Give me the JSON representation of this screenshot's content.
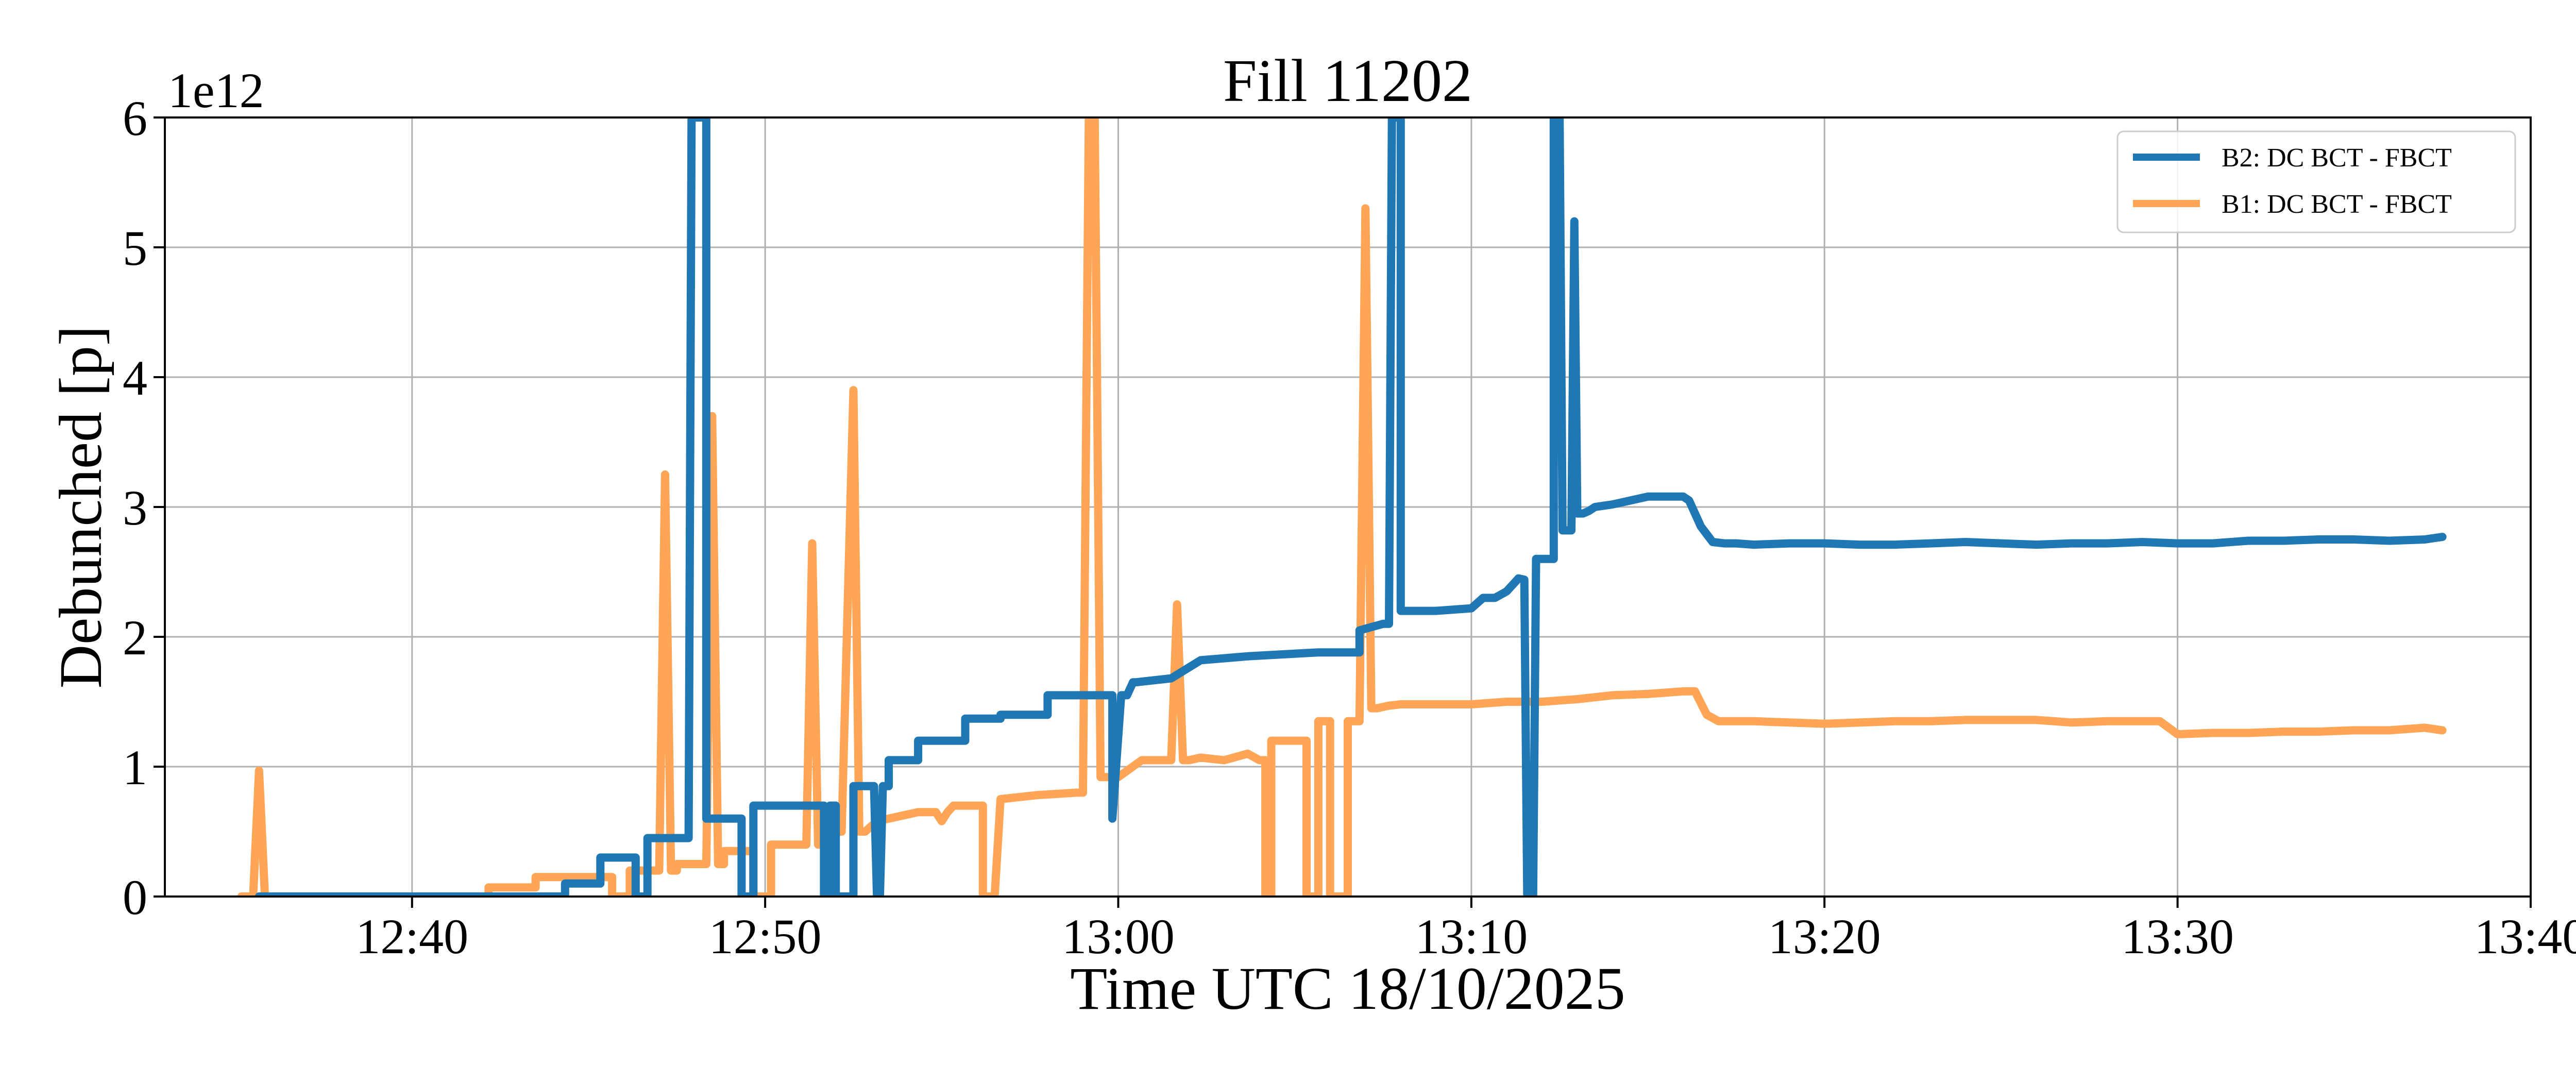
{
  "chart_data": {
    "type": "line",
    "title": "Fill 11202",
    "xlabel": "Time UTC 18/10/2025",
    "ylabel": "Debunched [p]",
    "y_multiplier": "1e12",
    "xlim": [
      "12:33",
      "13:40"
    ],
    "ylim": [
      0,
      6
    ],
    "x_ticks": [
      "12:40",
      "12:50",
      "13:00",
      "13:10",
      "13:20",
      "13:30",
      "13:40"
    ],
    "y_ticks": [
      "0",
      "1",
      "2",
      "3",
      "4",
      "5",
      "6"
    ],
    "grid": true,
    "legend_location": "top-right",
    "series": [
      {
        "name": "B2: DC BCT - FBCT",
        "color": "#1f77b4",
        "x": [
          "12:35:40",
          "12:37:00",
          "12:40:00",
          "12:43:00",
          "12:43:40",
          "12:44:20",
          "12:44:20",
          "12:45:00",
          "12:45:20",
          "12:45:20",
          "12:46:20",
          "12:46:20",
          "12:46:40",
          "12:46:40",
          "12:47:10",
          "12:47:10",
          "12:47:50",
          "12:47:55",
          "12:48:00",
          "12:48:05",
          "12:48:15",
          "12:48:20",
          "12:48:20",
          "12:49:20",
          "12:49:20",
          "12:49:40",
          "12:49:40",
          "12:51:40",
          "12:51:40",
          "12:51:50",
          "12:51:50",
          "12:52:00",
          "12:52:00",
          "12:52:30",
          "12:52:30",
          "12:53:05",
          "12:53:10",
          "12:53:15",
          "12:53:20",
          "12:53:30",
          "12:53:30",
          "12:54:20",
          "12:54:20",
          "12:55:40",
          "12:55:40",
          "12:56:40",
          "12:56:40",
          "12:58:00",
          "12:58:00",
          "12:58:45",
          "12:58:45",
          "12:59:50",
          "12:59:50",
          "13:00:05",
          "13:00:15",
          "13:00:25",
          "13:00:30",
          "13:00:30",
          "13:01:30",
          "13:01:30",
          "13:02:20",
          "13:02:20",
          "13:03:40",
          "13:03:40",
          "13:05:40",
          "13:05:40",
          "13:06:20",
          "13:06:30",
          "13:06:40",
          "13:06:50",
          "13:06:50",
          "13:07:30",
          "13:07:40",
          "13:07:45",
          "13:07:50",
          "13:07:55",
          "13:08:00",
          "13:08:00",
          "13:09:00",
          "13:09:00",
          "13:10:00",
          "13:10:20",
          "13:10:40",
          "13:10:40",
          "13:11:00",
          "13:11:10",
          "13:11:20",
          "13:11:30",
          "13:11:35",
          "13:11:40",
          "13:11:45",
          "13:11:50",
          "13:11:50",
          "13:12:20",
          "13:12:20",
          "13:12:25",
          "13:12:30",
          "13:12:35",
          "13:12:40",
          "13:12:45",
          "13:12:50",
          "13:12:55",
          "13:13:00",
          "13:13:05",
          "13:13:10",
          "13:13:20",
          "13:13:30",
          "13:14:00",
          "13:14:30",
          "13:15:00",
          "13:15:30",
          "13:16:00",
          "13:16:10",
          "13:16:30",
          "13:16:50",
          "13:17:10",
          "13:17:30",
          "13:18:00",
          "13:19:00",
          "13:20:00",
          "13:21:00",
          "13:22:00",
          "13:23:00",
          "13:24:00",
          "13:25:00",
          "13:26:00",
          "13:27:00",
          "13:28:00",
          "13:29:00",
          "13:30:00",
          "13:31:00",
          "13:32:00",
          "13:33:00",
          "13:34:00",
          "13:35:00",
          "13:36:00",
          "13:37:00",
          "13:37:30"
        ],
        "y": [
          0.0,
          0.0,
          0.0,
          0.0,
          0.0,
          0.0,
          0.1,
          0.1,
          0.1,
          0.3,
          0.3,
          0.0,
          0.0,
          0.45,
          0.45,
          0.45,
          0.45,
          6.0,
          6.0,
          6.0,
          6.0,
          6.0,
          0.6,
          0.6,
          0.0,
          0.0,
          0.7,
          0.7,
          0.0,
          0.0,
          0.7,
          0.7,
          0.0,
          0.0,
          0.85,
          0.85,
          0.0,
          0.0,
          0.85,
          0.85,
          1.05,
          1.05,
          1.2,
          1.2,
          1.37,
          1.37,
          1.4,
          1.4,
          1.55,
          1.55,
          1.55,
          1.55,
          0.6,
          1.55,
          1.55,
          1.65,
          1.65,
          1.65,
          1.68,
          1.68,
          1.82,
          1.82,
          1.85,
          1.85,
          1.88,
          1.88,
          1.88,
          1.88,
          1.88,
          1.88,
          2.05,
          2.1,
          2.1,
          6.0,
          6.0,
          6.0,
          6.0,
          2.2,
          2.2,
          2.2,
          2.22,
          2.3,
          2.3,
          2.3,
          2.35,
          2.4,
          2.45,
          2.44,
          0.0,
          0.0,
          0.0,
          2.6,
          2.6,
          2.6,
          6.0,
          6.0,
          6.0,
          2.82,
          2.82,
          2.82,
          2.82,
          5.2,
          2.95,
          2.95,
          2.95,
          2.97,
          3.0,
          3.02,
          3.05,
          3.08,
          3.08,
          3.08,
          3.05,
          2.85,
          2.73,
          2.72,
          2.72,
          2.71,
          2.72,
          2.72,
          2.71,
          2.71,
          2.72,
          2.73,
          2.72,
          2.71,
          2.72,
          2.72,
          2.73,
          2.72,
          2.72,
          2.74,
          2.74,
          2.75,
          2.75,
          2.74,
          2.75,
          2.77
        ]
      },
      {
        "name": "B1: DC BCT - FBCT",
        "color": "#ffa556",
        "x": [
          "12:35:10",
          "12:35:30",
          "12:35:40",
          "12:35:50",
          "12:36:00",
          "12:37:00",
          "12:40:00",
          "12:42:10",
          "12:42:10",
          "12:43:30",
          "12:43:30",
          "12:45:00",
          "12:45:40",
          "12:45:40",
          "12:46:10",
          "12:46:10",
          "12:47:00",
          "12:47:10",
          "12:47:20",
          "12:47:30",
          "12:47:30",
          "12:48:20",
          "12:48:30",
          "12:48:40",
          "12:48:50",
          "12:48:50",
          "12:49:40",
          "12:49:40",
          "12:50:10",
          "12:50:10",
          "12:51:10",
          "12:51:20",
          "12:51:30",
          "12:51:40",
          "12:51:40",
          "12:52:10",
          "12:52:30",
          "12:52:40",
          "12:52:50",
          "12:53:10",
          "12:53:10",
          "12:54:20",
          "12:54:50",
          "12:55:00",
          "12:55:10",
          "12:55:20",
          "12:55:40",
          "12:56:10",
          "12:56:10",
          "12:56:30",
          "12:56:40",
          "12:56:40",
          "12:57:40",
          "12:57:40",
          "12:58:50",
          "12:59:00",
          "12:59:10",
          "12:59:20",
          "12:59:30",
          "12:59:40",
          "13:00:00",
          "13:00:40",
          "13:00:40",
          "13:01:30",
          "13:01:40",
          "13:01:50",
          "13:02:00",
          "13:02:20",
          "13:03:00",
          "13:03:40",
          "13:04:00",
          "13:04:10",
          "13:04:10",
          "13:04:20",
          "13:04:20",
          "13:05:20",
          "13:05:20",
          "13:05:40",
          "13:05:40",
          "13:06:00",
          "13:06:00",
          "13:06:30",
          "13:06:30",
          "13:06:50",
          "13:07:00",
          "13:07:10",
          "13:07:20",
          "13:07:40",
          "13:08:00",
          "13:09:00",
          "13:10:00",
          "13:11:00",
          "13:12:00",
          "13:13:00",
          "13:14:00",
          "13:15:00",
          "13:16:00",
          "13:16:20",
          "13:16:40",
          "13:17:00",
          "13:17:30",
          "13:18:00",
          "13:19:00",
          "13:20:00",
          "13:21:00",
          "13:22:00",
          "13:23:00",
          "13:24:00",
          "13:25:00",
          "13:26:00",
          "13:27:00",
          "13:28:00",
          "13:29:00",
          "13:29:30",
          "13:30:00",
          "13:31:00",
          "13:32:00",
          "13:33:00",
          "13:34:00",
          "13:35:00",
          "13:36:00",
          "13:37:00",
          "13:37:30"
        ],
        "y": [
          0.0,
          0.0,
          0.97,
          0.0,
          0.0,
          0.0,
          0.0,
          0.0,
          0.07,
          0.07,
          0.15,
          0.15,
          0.15,
          0.0,
          0.0,
          0.2,
          0.2,
          3.25,
          0.2,
          0.2,
          0.25,
          0.25,
          3.7,
          0.25,
          0.25,
          0.35,
          0.35,
          0.0,
          0.0,
          0.4,
          0.4,
          2.72,
          0.4,
          0.4,
          0.5,
          0.5,
          3.9,
          0.5,
          0.5,
          0.58,
          0.58,
          0.65,
          0.65,
          0.58,
          0.65,
          0.7,
          0.7,
          0.7,
          0.0,
          0.0,
          0.75,
          0.75,
          0.78,
          0.78,
          0.8,
          0.8,
          6.0,
          6.0,
          0.92,
          0.92,
          0.92,
          1.05,
          1.05,
          1.05,
          2.25,
          1.05,
          1.05,
          1.07,
          1.05,
          1.1,
          1.05,
          1.05,
          0.0,
          0.0,
          1.2,
          1.2,
          0.0,
          0.0,
          1.35,
          1.35,
          0.0,
          0.0,
          1.35,
          1.35,
          5.3,
          1.45,
          1.45,
          1.47,
          1.48,
          1.48,
          1.48,
          1.5,
          1.5,
          1.52,
          1.55,
          1.56,
          1.58,
          1.58,
          1.4,
          1.35,
          1.35,
          1.35,
          1.34,
          1.33,
          1.34,
          1.35,
          1.35,
          1.36,
          1.36,
          1.36,
          1.34,
          1.35,
          1.35,
          1.35,
          1.25,
          1.26,
          1.26,
          1.27,
          1.27,
          1.28,
          1.28,
          1.3,
          1.28
        ]
      }
    ]
  }
}
